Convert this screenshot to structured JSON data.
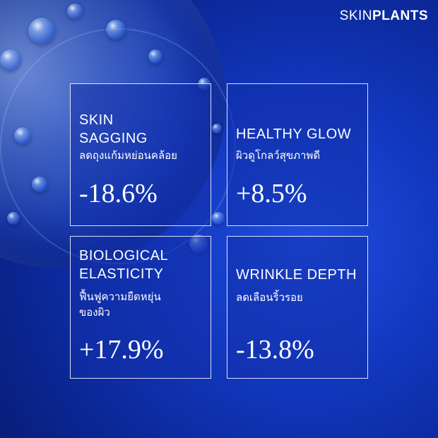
{
  "brand": {
    "part1": "SKIN",
    "part2": "PLANTS"
  },
  "cards": [
    {
      "title": "SKIN\nSAGGING",
      "subtitle": "ลดถุงแก้มหย่อนคล้อย",
      "value": "-18.6%"
    },
    {
      "title": "HEALTHY GLOW",
      "subtitle": "ผิวดูโกลว์สุขภาพดี",
      "value": "+8.5%"
    },
    {
      "title": "BIOLOGICAL\nELASTICITY",
      "subtitle": "ฟื้นฟูความยืดหยุ่น\nของผิว",
      "value": "+17.9%"
    },
    {
      "title": "WRINKLE DEPTH",
      "subtitle": "ลดเลือนริ้วรอย",
      "value": "-13.8%"
    }
  ],
  "colors": {
    "background": "#1238c0",
    "card_border": "#ffffff",
    "text": "#ffffff"
  }
}
